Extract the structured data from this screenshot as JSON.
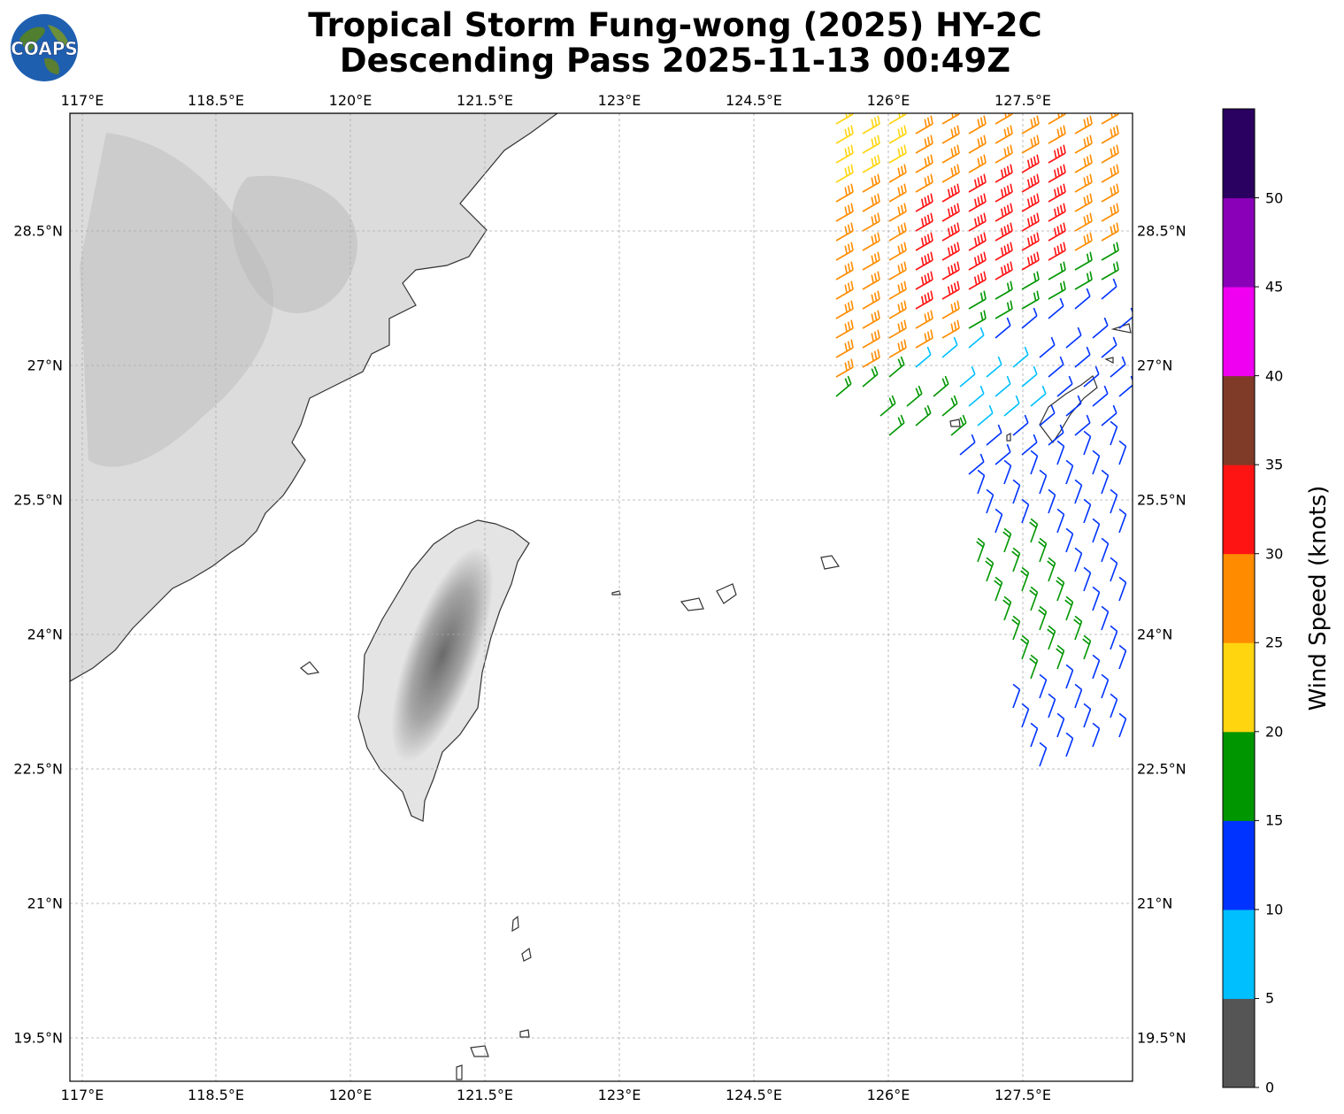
{
  "title_line1": "Tropical Storm Fung-wong (2025) HY-2C",
  "title_line2": "Descending Pass 2025-11-13 00:49Z",
  "logo_text": "COAPS",
  "lon_ticks": [
    "117°E",
    "118.5°E",
    "120°E",
    "121.5°E",
    "123°E",
    "124.5°E",
    "126°E",
    "127.5°E"
  ],
  "lat_ticks": [
    "28.5°N",
    "27°N",
    "25.5°N",
    "24°N",
    "22.5°N",
    "21°N",
    "19.5°N"
  ],
  "colorbar": {
    "label": "Wind Speed (knots)",
    "ticks": [
      "0",
      "5",
      "10",
      "15",
      "20",
      "25",
      "30",
      "35",
      "40",
      "45",
      "50"
    ],
    "colors": [
      "#555555",
      "#00bfff",
      "#0033ff",
      "#009600",
      "#ffd510",
      "#ff8c00",
      "#ff1414",
      "#7f3b28",
      "#f000f0",
      "#8a00b8",
      "#2a0060"
    ]
  },
  "icons": {
    "logo": "globe-icon"
  }
}
